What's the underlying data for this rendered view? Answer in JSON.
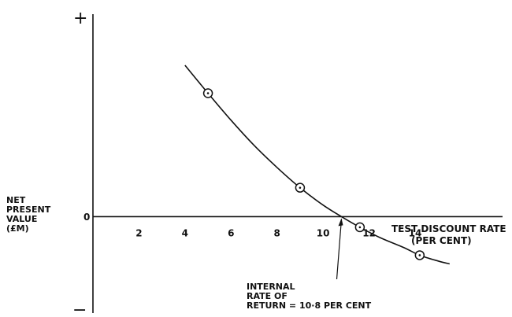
{
  "chart_data": {
    "type": "line",
    "xlabel_line1": "TEST DISCOUNT RATE",
    "xlabel_line2": "(PER CENT)",
    "ylabel_lines": [
      "NET",
      "PRESENT",
      "VALUE",
      "(£M)"
    ],
    "y_plus": "+",
    "y_minus": "−",
    "y_zero_label": "0",
    "x_ticks": [
      2,
      4,
      6,
      8,
      10,
      12,
      14
    ],
    "xlim": [
      0,
      17.8
    ],
    "ylim": [
      -5,
      10.5
    ],
    "grid": false,
    "curve": {
      "x": [
        4.0,
        5.0,
        6.0,
        7.0,
        8.0,
        9.0,
        10.0,
        10.8,
        11.6,
        12.5,
        13.5,
        14.2,
        15.0,
        15.5
      ],
      "y": [
        7.85,
        6.4,
        5.0,
        3.7,
        2.55,
        1.5,
        0.6,
        0.0,
        -0.55,
        -1.1,
        -1.6,
        -2.0,
        -2.3,
        -2.45
      ]
    },
    "points": [
      {
        "x": 5.0,
        "y": 6.4
      },
      {
        "x": 9.0,
        "y": 1.5
      },
      {
        "x": 11.6,
        "y": -0.55
      },
      {
        "x": 14.2,
        "y": -2.0
      }
    ],
    "annotation": {
      "lines": [
        "INTERNAL",
        "RATE OF",
        "RETURN = 10·8 PER CENT"
      ],
      "x": 10.8
    }
  }
}
